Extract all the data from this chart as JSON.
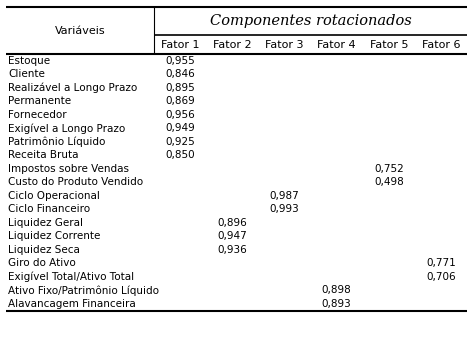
{
  "title": "Componentes rotacionados",
  "col_header_left": "Variáveis",
  "col_headers": [
    "Fator 1",
    "Fator 2",
    "Fator 3",
    "Fator 4",
    "Fator 5",
    "Fator 6"
  ],
  "rows": [
    [
      "Estoque",
      "0,955",
      "",
      "",
      "",
      "",
      ""
    ],
    [
      "Cliente",
      "0,846",
      "",
      "",
      "",
      "",
      ""
    ],
    [
      "Realizável a Longo Prazo",
      "0,895",
      "",
      "",
      "",
      "",
      ""
    ],
    [
      "Permanente",
      "0,869",
      "",
      "",
      "",
      "",
      ""
    ],
    [
      "Fornecedor",
      "0,956",
      "",
      "",
      "",
      "",
      ""
    ],
    [
      "Exigível a Longo Prazo",
      "0,949",
      "",
      "",
      "",
      "",
      ""
    ],
    [
      "Patrimônio Líquido",
      "0,925",
      "",
      "",
      "",
      "",
      ""
    ],
    [
      "Receita Bruta",
      "0,850",
      "",
      "",
      "",
      "",
      ""
    ],
    [
      "Impostos sobre Vendas",
      "",
      "",
      "",
      "",
      "0,752",
      ""
    ],
    [
      "Custo do Produto Vendido",
      "",
      "",
      "",
      "",
      "0,498",
      ""
    ],
    [
      "Ciclo Operacional",
      "",
      "",
      "0,987",
      "",
      "",
      ""
    ],
    [
      "Ciclo Financeiro",
      "",
      "",
      "0,993",
      "",
      "",
      ""
    ],
    [
      "Liquidez Geral",
      "",
      "0,896",
      "",
      "",
      "",
      ""
    ],
    [
      "Liquidez Corrente",
      "",
      "0,947",
      "",
      "",
      "",
      ""
    ],
    [
      "Liquidez Seca",
      "",
      "0,936",
      "",
      "",
      "",
      ""
    ],
    [
      "Giro do Ativo",
      "",
      "",
      "",
      "",
      "",
      "0,771"
    ],
    [
      "Exigível Total/Ativo Total",
      "",
      "",
      "",
      "",
      "",
      "0,706"
    ],
    [
      "Ativo Fixo/Patrimônio Líquido",
      "",
      "",
      "",
      "0,898",
      "",
      ""
    ],
    [
      "Alavancagem Financeira",
      "",
      "",
      "",
      "0,893",
      "",
      ""
    ]
  ],
  "bg_color": "#ffffff",
  "text_color": "#000000",
  "title_fontsize": 10.5,
  "subheader_fontsize": 8.0,
  "row_fontsize": 7.5,
  "var_label_fontsize": 8.0
}
